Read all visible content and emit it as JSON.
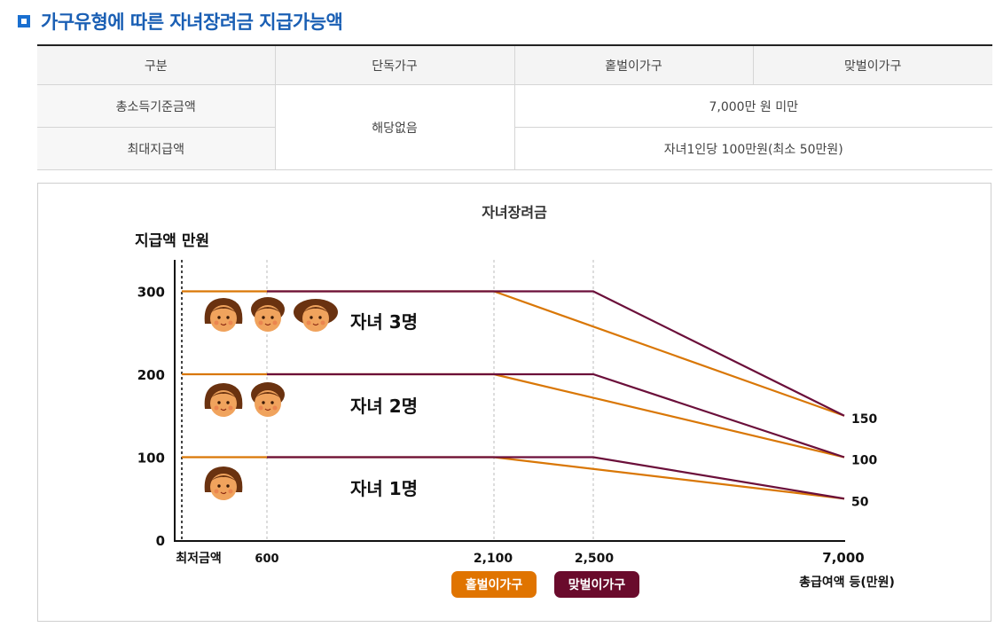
{
  "page": {
    "heading": "가구유형에 따른 자녀장려금 지급가능액"
  },
  "table": {
    "headers": [
      "구분",
      "단독가구",
      "홑벌이가구",
      "맞벌이가구"
    ],
    "rows": [
      {
        "label": "총소득기준금액",
        "single": "해당없음",
        "value": "7,000만 원 미만"
      },
      {
        "label": "최대지급액",
        "value": "자녀1인당 100만원(최소 50만원)"
      }
    ]
  },
  "chart_data": {
    "type": "line",
    "title": "자녀장려금",
    "ylabel": "지급액 만원",
    "xlabel": "총급여액 등(만원)",
    "x_tick_labels": [
      "최저금액",
      "600",
      "2,100",
      "2,500",
      "7,000"
    ],
    "y_tick_labels": [
      "0",
      "100",
      "200",
      "300"
    ],
    "right_labels": [
      "150",
      "100",
      "50"
    ],
    "ylim": [
      0,
      340
    ],
    "series": [
      {
        "name": "홑벌이가구",
        "color": "#d97706",
        "lines": [
          {
            "points": [
              [
                "최저금액",
                300
              ],
              [
                2100,
                300
              ],
              [
                7000,
                150
              ]
            ]
          },
          {
            "points": [
              [
                "최저금액",
                200
              ],
              [
                2100,
                200
              ],
              [
                7000,
                100
              ]
            ]
          },
          {
            "points": [
              [
                "최저금액",
                100
              ],
              [
                2100,
                100
              ],
              [
                7000,
                50
              ]
            ]
          }
        ]
      },
      {
        "name": "맞벌이가구",
        "color": "#6b0f3a",
        "lines": [
          {
            "points": [
              [
                600,
                300
              ],
              [
                2500,
                300
              ],
              [
                7000,
                150
              ]
            ]
          },
          {
            "points": [
              [
                600,
                200
              ],
              [
                2500,
                200
              ],
              [
                7000,
                100
              ]
            ]
          },
          {
            "points": [
              [
                600,
                100
              ],
              [
                2500,
                100
              ],
              [
                7000,
                50
              ]
            ]
          }
        ]
      }
    ],
    "annotations": [
      "자녀 3명",
      "자녀 2명",
      "자녀 1명"
    ],
    "legend": [
      "홑벌이가구",
      "맞벌이가구"
    ]
  }
}
